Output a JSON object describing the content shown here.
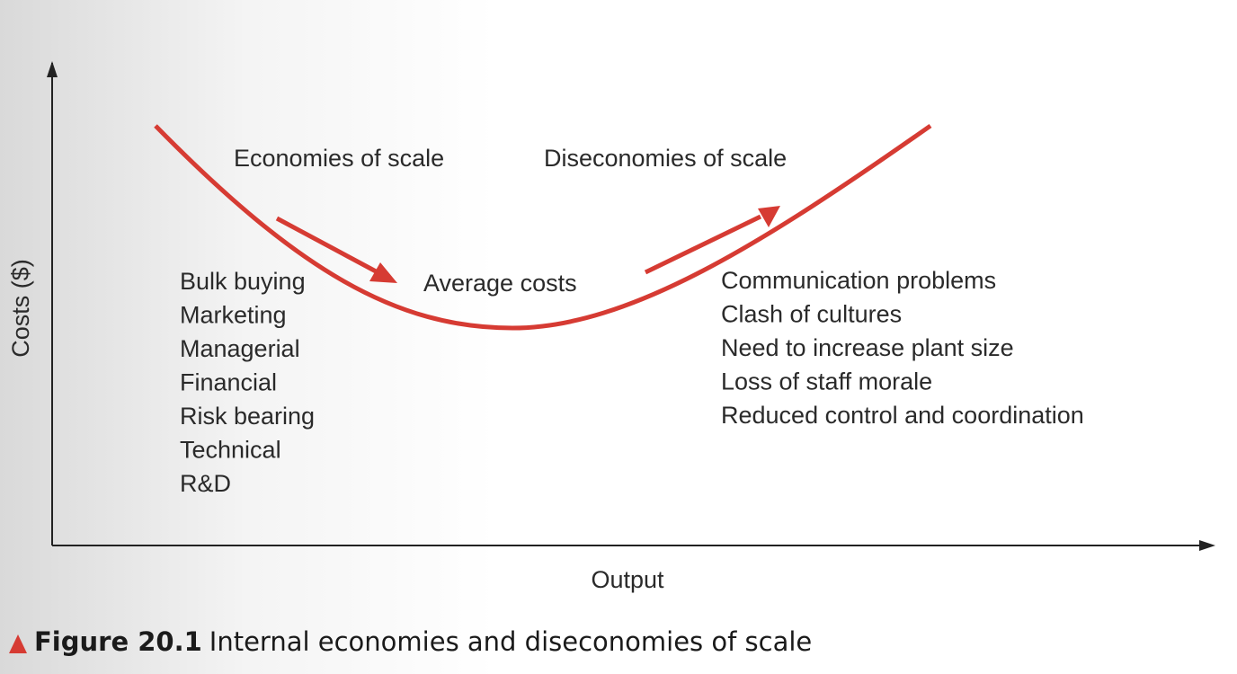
{
  "axes": {
    "y_label": "Costs ($)",
    "x_label": "Output"
  },
  "curve_label": "Average costs",
  "economies": {
    "heading": "Economies of scale",
    "items": [
      "Bulk buying",
      "Marketing",
      "Managerial",
      "Financial",
      "Risk bearing",
      "Technical",
      "R&D"
    ]
  },
  "diseconomies": {
    "heading": "Diseconomies of scale",
    "items": [
      "Communication problems",
      "Clash of cultures",
      "Need to increase plant size",
      "Loss of staff morale",
      "Reduced control and coordination"
    ]
  },
  "caption": {
    "number": "Figure 20.1",
    "text": "Internal economies and diseconomies of scale"
  }
}
